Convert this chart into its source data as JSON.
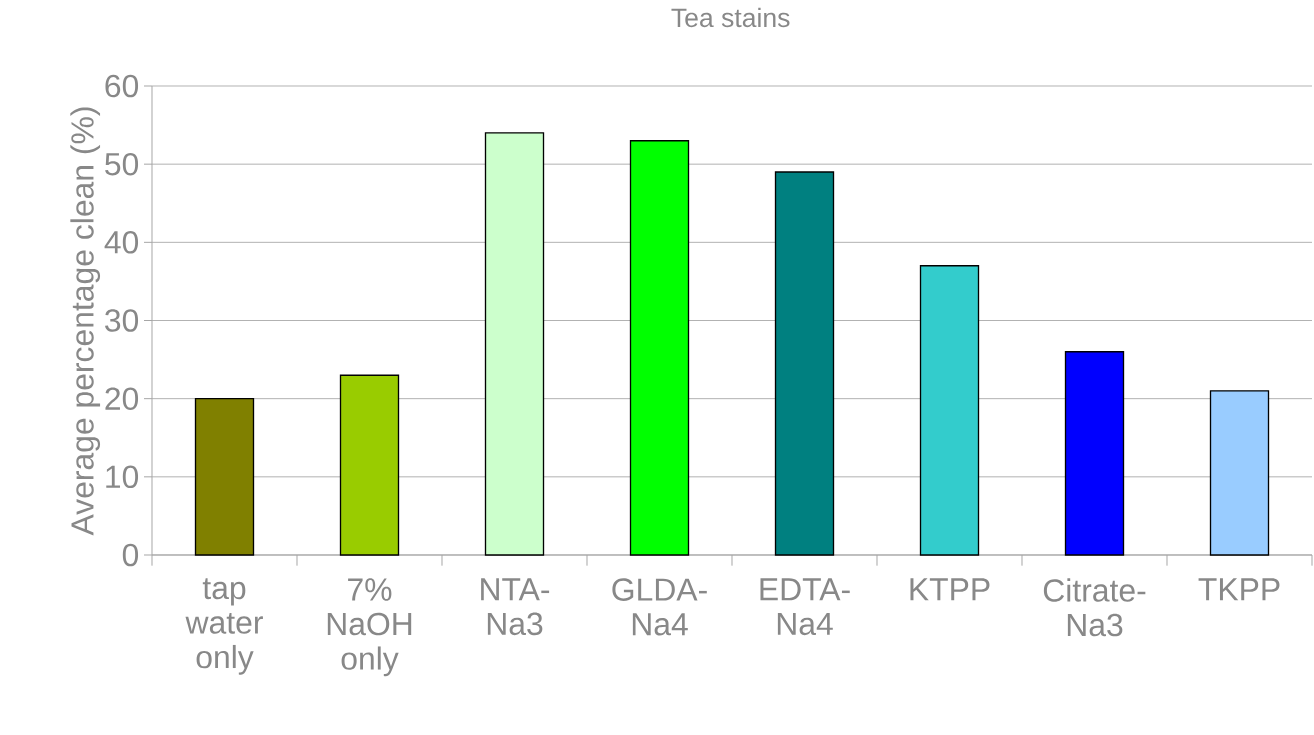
{
  "chart_data": {
    "type": "bar",
    "title": "Tea stains",
    "ylabel": "Average percentage clean (%)",
    "categories": [
      "tap water only",
      "7% NaOH only",
      "NTA-Na3",
      "GLDA-Na4",
      "EDTA-Na4",
      "KTPP",
      "Citrate-Na3",
      "TKPP"
    ],
    "values": [
      20,
      23,
      54,
      53,
      49,
      37,
      26,
      21
    ],
    "colors": [
      "#808000",
      "#99cc00",
      "#ccffcc",
      "#00ff00",
      "#008080",
      "#33cccc",
      "#0000ff",
      "#99ccff"
    ],
    "ylim": [
      0,
      60
    ],
    "yticks": [
      0,
      10,
      20,
      30,
      40,
      50,
      60
    ],
    "grid": "y"
  }
}
